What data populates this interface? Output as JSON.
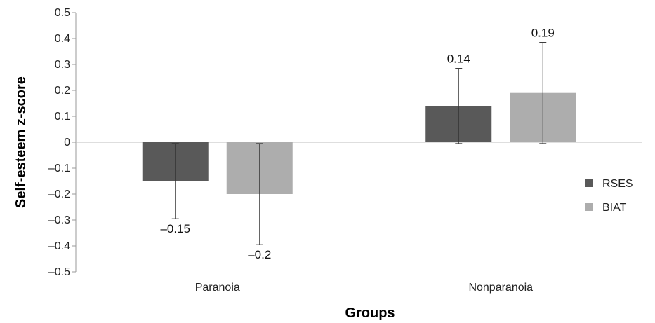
{
  "chart_data": {
    "type": "bar",
    "xlabel": "Groups",
    "ylabel": "Self-esteem z-score",
    "ylim": [
      -0.5,
      0.5
    ],
    "yticks": [
      "0.5",
      "0.4",
      "0.3",
      "0.2",
      "0.1",
      "0",
      "-0.1",
      "-0.2",
      "-0.3",
      "-0.4",
      "-0.5"
    ],
    "yticks_display": [
      "0.5",
      "0.4",
      "0.3",
      "0.2",
      "0.1",
      "0",
      "–0.1",
      "–0.2",
      "–0.3",
      "–0.4",
      "–0.5"
    ],
    "categories": [
      "Paranoia",
      "Nonparanoia"
    ],
    "legend_position": "right",
    "series": [
      {
        "name": "RSES",
        "color": "#595959",
        "values": [
          -0.15,
          0.14
        ],
        "error_low": [
          -0.295,
          -0.005
        ],
        "error_high": [
          -0.005,
          0.285
        ],
        "labels": [
          "–0.15",
          "0.14"
        ]
      },
      {
        "name": "BIAT",
        "color": "#adadad",
        "values": [
          -0.2,
          0.19
        ],
        "error_low": [
          -0.395,
          -0.005
        ],
        "error_high": [
          -0.005,
          0.385
        ],
        "labels": [
          "–0.2",
          "0.19"
        ]
      }
    ]
  }
}
